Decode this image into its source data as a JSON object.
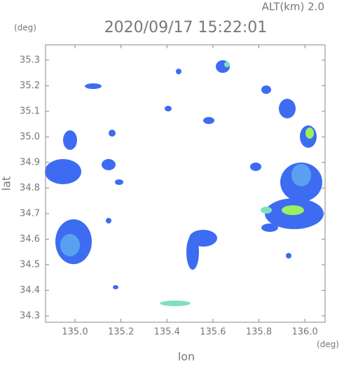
{
  "chart_data": {
    "type": "radar-map",
    "title": "2020/09/17 15:22:01",
    "altitude_label": "ALT(km)  2.0",
    "x_label": "lon",
    "y_label": "lat",
    "x_unit": "(deg)",
    "y_unit": "(deg)",
    "xlim": [
      134.872,
      136.088
    ],
    "ylim": [
      34.275,
      35.36
    ],
    "xticks": [
      {
        "value": 135,
        "label": "135.0"
      },
      135.2,
      135.4,
      135.6,
      135.8,
      {
        "value": 136,
        "label": "136.0"
      }
    ],
    "yticks": [
      34.3,
      34.4,
      34.5,
      34.6,
      34.7,
      34.8,
      34.9,
      {
        "value": 35,
        "label": "35.0"
      },
      35.1,
      35.2,
      35.3
    ]
  }
}
